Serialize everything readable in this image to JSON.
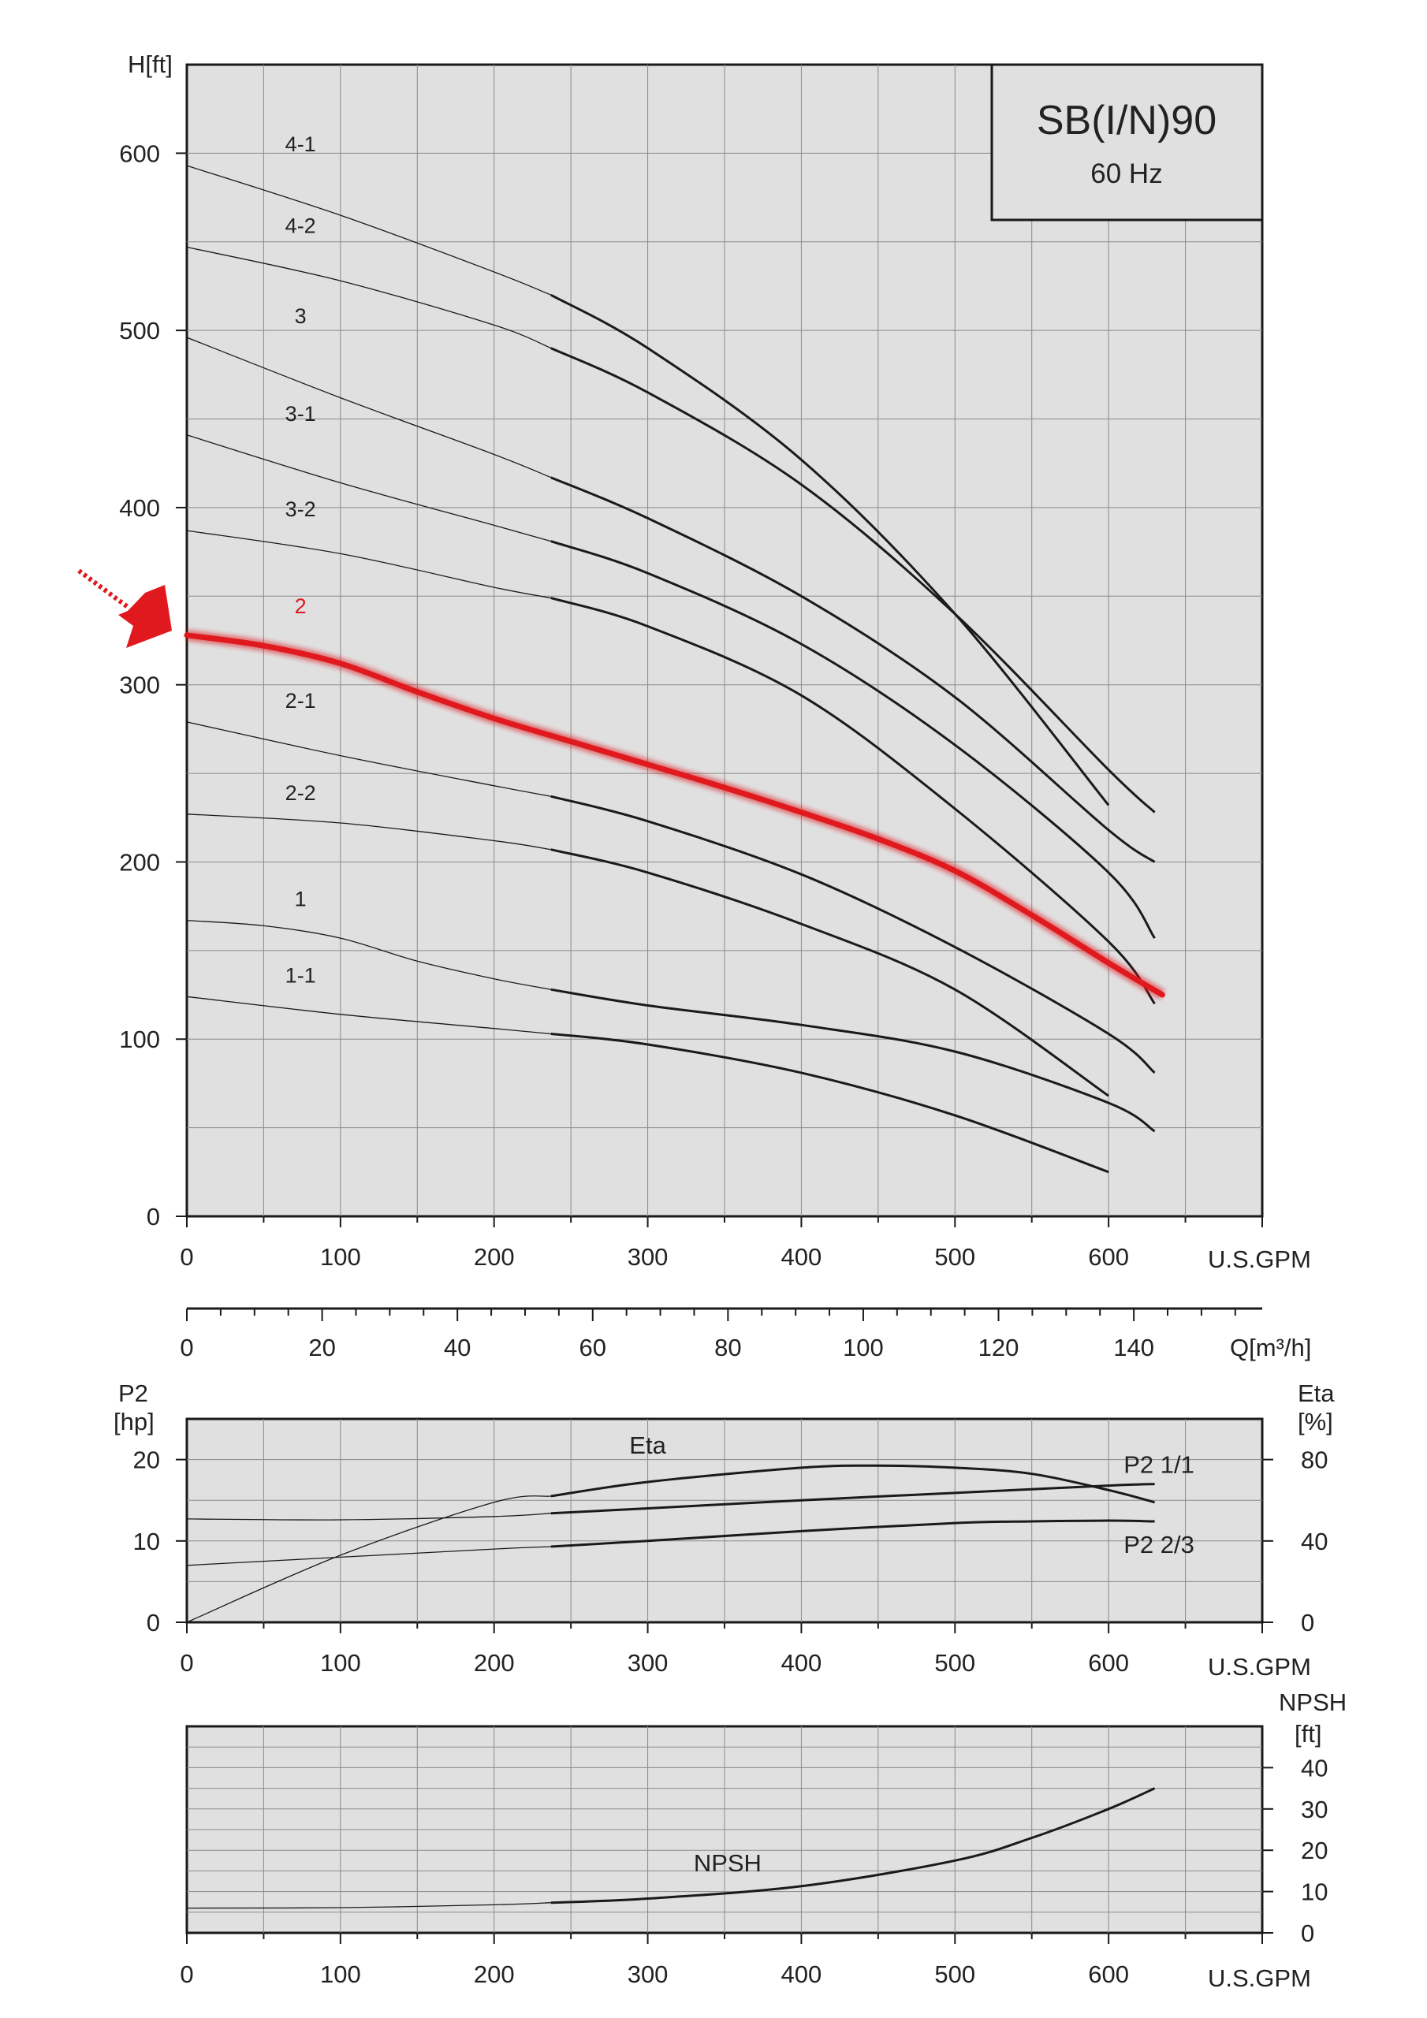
{
  "meta": {
    "title": "SB(I/N)90",
    "frequency": "60 Hz"
  },
  "colors": {
    "panel_bg": "#e0e0e0",
    "grid": "#8a8a8a",
    "curve": "#1a1a1a",
    "highlight": "#e0191e"
  },
  "chart_data": [
    {
      "id": "head",
      "type": "line",
      "ylabel": "H[ft]",
      "xlabel": "U.S.GPM",
      "xlim": [
        0,
        700
      ],
      "ylim": [
        0,
        650
      ],
      "x_ticks": [
        "0",
        "100",
        "200",
        "300",
        "400",
        "500",
        "600"
      ],
      "y_ticks": [
        "0",
        "100",
        "200",
        "300",
        "400",
        "500",
        "600"
      ],
      "grid": true,
      "secondary_x_axis": {
        "label": "Q[m³/h]",
        "ticks": [
          "0",
          "20",
          "40",
          "60",
          "80",
          "100",
          "120",
          "140"
        ]
      },
      "series": [
        {
          "name": "4-1",
          "x": [
            0,
            100,
            200,
            237,
            300,
            400,
            500,
            600
          ],
          "y": [
            593,
            565,
            533,
            520,
            490,
            427,
            340,
            232
          ]
        },
        {
          "name": "4-2",
          "x": [
            0,
            100,
            200,
            237,
            300,
            400,
            500,
            600,
            630
          ],
          "y": [
            547,
            528,
            503,
            490,
            465,
            413,
            340,
            252,
            228
          ]
        },
        {
          "name": "3",
          "x": [
            0,
            100,
            200,
            237,
            300,
            400,
            500,
            600,
            630
          ],
          "y": [
            496,
            462,
            430,
            417,
            394,
            350,
            293,
            218,
            200
          ]
        },
        {
          "name": "3-1",
          "x": [
            0,
            100,
            200,
            237,
            300,
            400,
            500,
            600,
            630
          ],
          "y": [
            441,
            414,
            390,
            381,
            363,
            323,
            266,
            194,
            157
          ]
        },
        {
          "name": "3-2",
          "x": [
            0,
            100,
            200,
            237,
            300,
            400,
            500,
            600,
            630
          ],
          "y": [
            387,
            374,
            355,
            349,
            333,
            294,
            230,
            155,
            120
          ]
        },
        {
          "name": "2",
          "highlight": true,
          "x": [
            0,
            50,
            100,
            150,
            200,
            250,
            300,
            350,
            400,
            450,
            500,
            550,
            600,
            635
          ],
          "y": [
            328,
            322,
            312,
            296,
            281,
            268,
            255,
            242,
            228,
            213,
            195,
            170,
            143,
            125
          ]
        },
        {
          "name": "2-1",
          "x": [
            0,
            100,
            200,
            237,
            300,
            400,
            500,
            600,
            630
          ],
          "y": [
            279,
            260,
            243,
            237,
            223,
            193,
            152,
            103,
            81
          ]
        },
        {
          "name": "2-2",
          "x": [
            0,
            100,
            200,
            237,
            300,
            400,
            500,
            600
          ],
          "y": [
            227,
            222,
            212,
            207,
            194,
            165,
            128,
            68
          ]
        },
        {
          "name": "1",
          "x": [
            0,
            50,
            100,
            150,
            200,
            237,
            300,
            400,
            500,
            600,
            630
          ],
          "y": [
            167,
            164,
            157,
            144,
            134,
            128,
            119,
            108,
            93,
            64,
            48
          ]
        },
        {
          "name": "1-1",
          "x": [
            0,
            100,
            200,
            237,
            300,
            400,
            500,
            600
          ],
          "y": [
            124,
            114,
            106,
            103,
            97,
            81,
            57,
            25
          ]
        }
      ]
    },
    {
      "id": "power-eta",
      "type": "line",
      "ylabel": "P2\n[hp]",
      "y2label": "Eta\n[%]",
      "xlabel": "U.S.GPM",
      "xlim": [
        0,
        700
      ],
      "ylim": [
        0,
        25
      ],
      "y2lim": [
        0,
        100
      ],
      "x_ticks": [
        "0",
        "100",
        "200",
        "300",
        "400",
        "500",
        "600"
      ],
      "y_ticks": [
        "0",
        "10",
        "20"
      ],
      "y2_ticks": [
        "0",
        "40",
        "80"
      ],
      "grid": true,
      "series": [
        {
          "name": "Eta",
          "axis": "right",
          "x": [
            0,
            100,
            200,
            237,
            300,
            400,
            450,
            500,
            550,
            600,
            630
          ],
          "y": [
            0,
            33,
            59,
            62,
            69,
            76,
            77,
            76,
            73,
            65,
            59
          ]
        },
        {
          "name": "P2 1/1",
          "axis": "left",
          "x": [
            0,
            100,
            200,
            237,
            300,
            400,
            500,
            600,
            630
          ],
          "y": [
            12.7,
            12.6,
            13.0,
            13.4,
            14.0,
            15.0,
            15.9,
            16.8,
            17.0
          ]
        },
        {
          "name": "P2 2/3",
          "axis": "left",
          "x": [
            0,
            100,
            200,
            237,
            300,
            400,
            500,
            550,
            600,
            630
          ],
          "y": [
            7.0,
            8.0,
            9.0,
            9.3,
            10.0,
            11.2,
            12.2,
            12.4,
            12.5,
            12.4
          ]
        }
      ]
    },
    {
      "id": "npsh",
      "type": "line",
      "y2label": "NPSH\n[ft]",
      "xlabel": "U.S.GPM",
      "xlim": [
        0,
        700
      ],
      "y2lim": [
        0,
        50
      ],
      "x_ticks": [
        "0",
        "100",
        "200",
        "300",
        "400",
        "500",
        "600"
      ],
      "y2_ticks": [
        "0",
        "10",
        "20",
        "30",
        "40"
      ],
      "grid": true,
      "series": [
        {
          "name": "NPSH",
          "x": [
            0,
            100,
            200,
            237,
            300,
            400,
            500,
            550,
            600,
            630
          ],
          "y": [
            6,
            6.1,
            6.8,
            7.3,
            8.3,
            11.3,
            17.5,
            23,
            30,
            35
          ]
        }
      ]
    }
  ]
}
